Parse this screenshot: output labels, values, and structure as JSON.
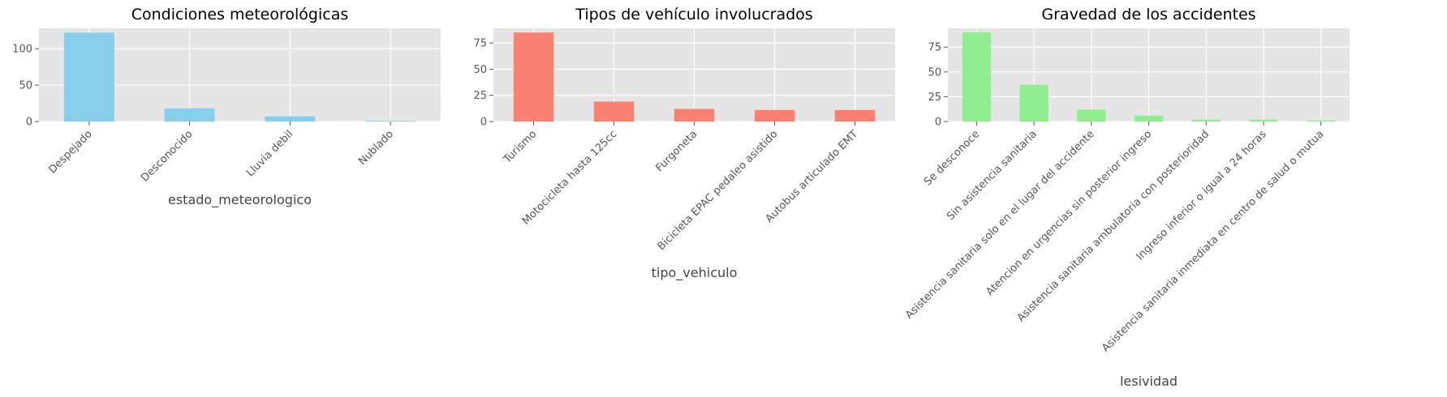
{
  "chart_data": [
    {
      "type": "bar",
      "title": "Condiciones meteorológicas",
      "xlabel": "estado_meteorologico",
      "ylabel": "",
      "categories": [
        "Despejado",
        "Desconocido",
        "Lluvia debil",
        "Nublado"
      ],
      "values": [
        122,
        18,
        7,
        1
      ],
      "ylim": [
        0,
        128
      ],
      "yticks": [
        0,
        50,
        100
      ],
      "color": "#87CEEB",
      "grid": true,
      "xtick_rotation": -45
    },
    {
      "type": "bar",
      "title": "Tipos de vehículo involucrados",
      "xlabel": "tipo_vehiculo",
      "ylabel": "",
      "categories": [
        "Turismo",
        "Motocicleta hasta 125cc",
        "Furgoneta",
        "Bicicleta EPAC pedaleo asistido",
        "Autobus articulado EMT"
      ],
      "values": [
        85,
        19,
        12,
        11,
        11
      ],
      "ylim": [
        0,
        89
      ],
      "yticks": [
        0,
        25,
        50,
        75
      ],
      "color": "#FA8072",
      "grid": true,
      "xtick_rotation": -45
    },
    {
      "type": "bar",
      "title": "Gravedad de los accidentes",
      "xlabel": "lesividad",
      "ylabel": "",
      "categories": [
        "Se desconoce",
        "Sin asistencia sanitaria",
        "Asistencia sanitaria solo en el lugar del accidente",
        "Atencion en urgencias sin posterior ingreso",
        "Asistencia sanitaria ambulatoria con posterioridad",
        "Ingreso inferior o igual a 24 horas",
        "Asistencia sanitaria inmediata en centro de salud o mutua"
      ],
      "values": [
        90,
        37,
        12,
        6,
        2,
        2,
        1
      ],
      "ylim": [
        0,
        94
      ],
      "yticks": [
        0,
        25,
        50,
        75
      ],
      "color": "#90EE90",
      "grid": true,
      "xtick_rotation": -45
    }
  ]
}
